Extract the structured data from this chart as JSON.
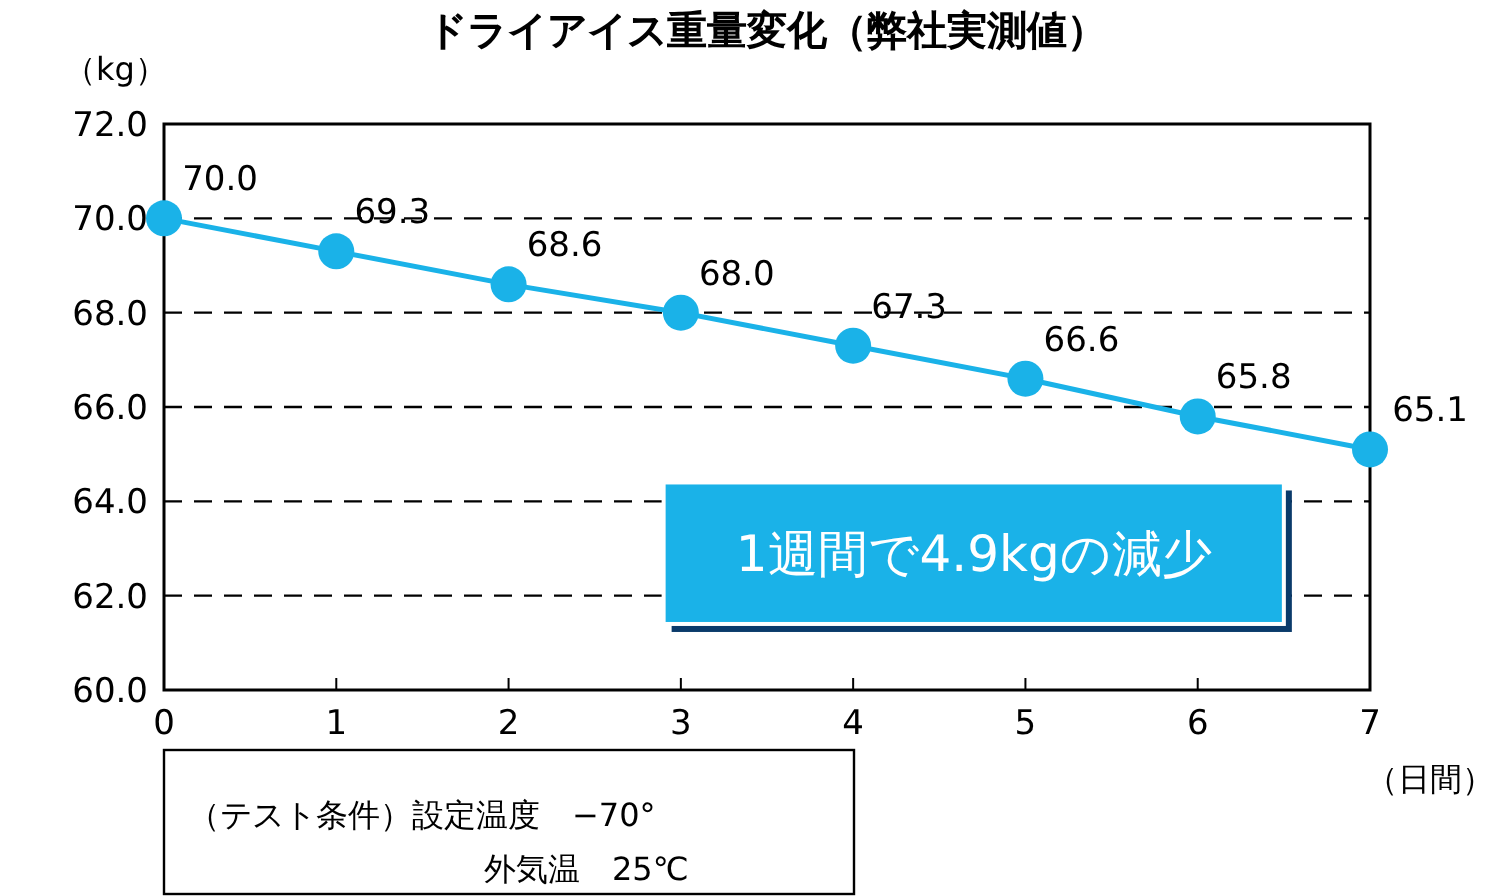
{
  "chart_data": {
    "type": "line",
    "title": "ドライアイス重量変化（弊社実測値）",
    "ylabel": "（kg）",
    "xlabel": "（日間）",
    "x": [
      0,
      1,
      2,
      3,
      4,
      5,
      6,
      7
    ],
    "series": [
      {
        "color": "#1ab2e8",
        "values": [
          70.0,
          69.3,
          68.6,
          68.0,
          67.3,
          66.6,
          65.8,
          65.1
        ],
        "value_labels": [
          "70.0",
          "69.3",
          "68.6",
          "68.0",
          "67.3",
          "66.6",
          "65.8",
          "65.1"
        ]
      }
    ],
    "xlim": [
      0,
      7
    ],
    "xticks": [
      0,
      1,
      2,
      3,
      4,
      5,
      6,
      7
    ],
    "ylim": [
      60,
      72
    ],
    "yticks": [
      {
        "value": 60,
        "label": "60.0"
      },
      {
        "value": 62,
        "label": "62.0"
      },
      {
        "value": 64,
        "label": "64.0"
      },
      {
        "value": 66,
        "label": "66.0"
      },
      {
        "value": 68,
        "label": "68.0"
      },
      {
        "value": 70,
        "label": "70.0"
      },
      {
        "value": 72,
        "label": "72.0"
      }
    ],
    "grid": "y",
    "line_style": "solid",
    "marker": "circle",
    "annotations": [
      "1週間で4.9kgの減少",
      "（テスト条件）設定温度　−70°",
      "外気温　25℃"
    ]
  }
}
